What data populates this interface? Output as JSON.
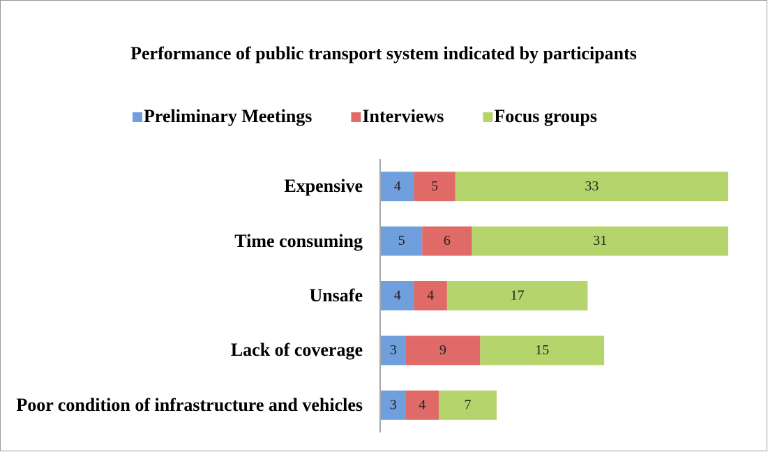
{
  "chart_data": {
    "type": "bar",
    "orientation": "horizontal",
    "stacked": true,
    "title": "Performance of public transport system indicated by participants",
    "categories": [
      "Expensive",
      "Time consuming",
      "Unsafe",
      "Lack of coverage",
      "Poor condition of infrastructure and vehicles"
    ],
    "series": [
      {
        "name": "Preliminary Meetings",
        "color": "#6f9fdc",
        "values": [
          4,
          5,
          4,
          3,
          3
        ]
      },
      {
        "name": "Interviews",
        "color": "#e06a68",
        "values": [
          5,
          6,
          4,
          9,
          4
        ]
      },
      {
        "name": "Focus groups",
        "color": "#b5d56c",
        "values": [
          33,
          31,
          17,
          15,
          7
        ]
      }
    ],
    "legend": "top"
  }
}
